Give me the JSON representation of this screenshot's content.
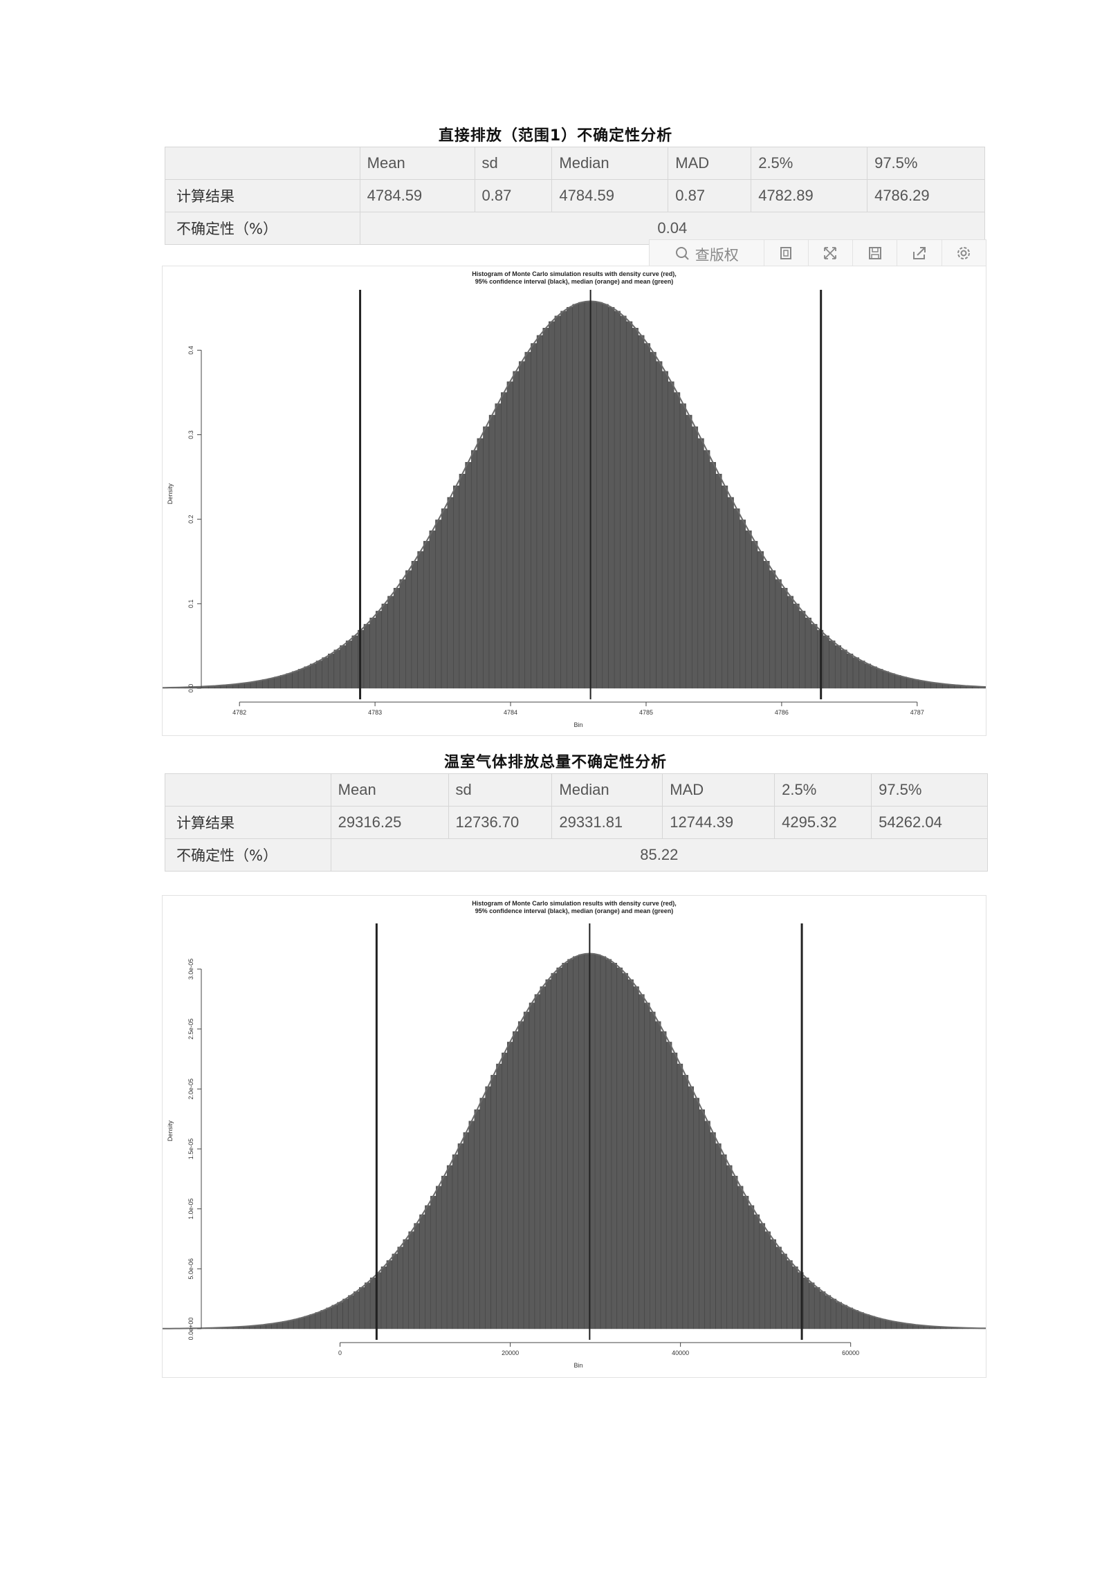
{
  "section1": {
    "title": "直接排放（范围1）不确定性分析",
    "table": {
      "headers": [
        "",
        "Mean",
        "sd",
        "Median",
        "MAD",
        "2.5%",
        "97.5%"
      ],
      "result_label": "计算结果",
      "result_values": [
        "4784.59",
        "0.87",
        "4784.59",
        "0.87",
        "4782.89",
        "4786.29"
      ],
      "uncertainty_label": "不确定性（%）",
      "uncertainty_value": "0.04"
    },
    "toolbar": {
      "copyright_label": "查版权",
      "icons": [
        "search-icon",
        "crop-icon",
        "expand-icon",
        "save-icon",
        "share-icon",
        "settings-icon"
      ]
    }
  },
  "section2": {
    "title": "温室气体排放总量不确定性分析",
    "table": {
      "headers": [
        "",
        "Mean",
        "sd",
        "Median",
        "MAD",
        "2.5%",
        "97.5%"
      ],
      "result_label": "计算结果",
      "result_values": [
        "29316.25",
        "12736.70",
        "29331.81",
        "12744.39",
        "4295.32",
        "54262.04"
      ],
      "uncertainty_label": "不确定性（%）",
      "uncertainty_value": "85.22"
    }
  },
  "chart_data": [
    {
      "type": "bar",
      "title": "Histogram of Monte Carlo simulation results with density curve (red),\n95% confidence interval (black), median (orange) and mean (green)",
      "xlabel": "Bin",
      "ylabel": "Density",
      "xlim": [
        4781.8,
        4787.2
      ],
      "ylim": [
        0,
        0.46
      ],
      "xticks": [
        "4782",
        "4783",
        "4784",
        "4785",
        "4786",
        "4787"
      ],
      "yticks": [
        "0.0",
        "0.1",
        "0.2",
        "0.3",
        "0.4"
      ],
      "distribution": {
        "mean": 4784.59,
        "sd": 0.87,
        "peak_density": 0.458
      },
      "vlines": {
        "ci_low": 4782.89,
        "ci_high": 4786.29,
        "median": 4784.59,
        "mean": 4784.59
      },
      "bar_color": "#5a5a5a",
      "line_color": "#222222"
    },
    {
      "type": "bar",
      "title": "Histogram of Monte Carlo simulation results with density curve (red),\n95% confidence interval (black), median (orange) and mean (green)",
      "xlabel": "Bin",
      "ylabel": "Density",
      "xlim": [
        -15000,
        71000
      ],
      "ylim": [
        0,
        3.3e-05
      ],
      "xticks": [
        "0",
        "20000",
        "40000",
        "60000"
      ],
      "yticks": [
        "0.0e+00",
        "5.0e-06",
        "1.0e-05",
        "1.5e-05",
        "2.0e-05",
        "2.5e-05",
        "3.0e-05"
      ],
      "distribution": {
        "mean": 29316.25,
        "sd": 12736.7,
        "peak_density": 3.13e-05
      },
      "vlines": {
        "ci_low": 4295.32,
        "ci_high": 54262.04,
        "median": 29331.81,
        "mean": 29316.25
      },
      "bar_color": "#5a5a5a",
      "line_color": "#222222"
    }
  ]
}
